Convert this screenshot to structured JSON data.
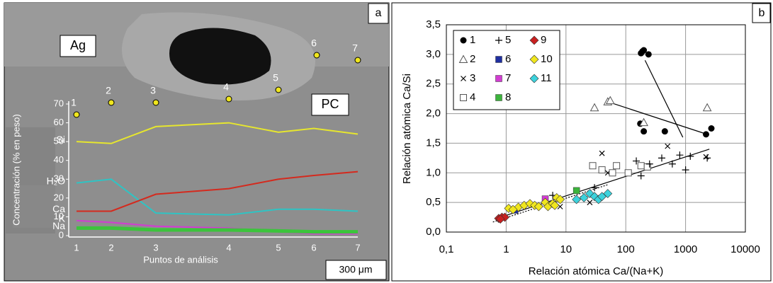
{
  "chart_data": [
    {
      "type": "line",
      "panel": "a",
      "annotations": {
        "phases": [
          "Ag",
          "PC"
        ],
        "scale_bar": "300 μm"
      },
      "xlabel": "Puntos de análisis",
      "ylabel": "Concentración (% en peso)",
      "categories": [
        "1",
        "2",
        "3",
        "4",
        "5",
        "6",
        "7"
      ],
      "ylim": [
        0,
        70
      ],
      "yticks": [
        0,
        10,
        20,
        30,
        40,
        50,
        60,
        70
      ],
      "series": [
        {
          "name": "Si",
          "color": "#e6e62e",
          "values": [
            50,
            49,
            58,
            60,
            55,
            57,
            54
          ]
        },
        {
          "name": "H₂O",
          "color": "#2ec4c4",
          "values": [
            28,
            30,
            12,
            11,
            14,
            14,
            13
          ]
        },
        {
          "name": "Ca",
          "color": "#d42a1e",
          "values": [
            13,
            13,
            22,
            25,
            30,
            32,
            34
          ]
        },
        {
          "name": "K",
          "color": "#d23cd2",
          "values": [
            8,
            7,
            5,
            4,
            2,
            1,
            1
          ]
        },
        {
          "name": "Na",
          "color": "#3cc43c",
          "values": [
            4,
            4,
            3,
            3,
            2.5,
            2,
            2
          ]
        }
      ]
    },
    {
      "type": "scatter",
      "panel": "b",
      "xlabel": "Relación atómica Ca/(Na+K)",
      "ylabel": "Relación atómica Ca/Si",
      "log_x": true,
      "grid": true,
      "legend": "upper left",
      "xlim": [
        0.1,
        10000
      ],
      "xticks": [
        {
          "value": 0.1,
          "label": "0,1"
        },
        1,
        10,
        100,
        1000,
        10000
      ],
      "ylim": [
        0,
        3.5
      ],
      "yticks": [
        {
          "value": 0,
          "label": "0,0"
        },
        {
          "value": 0.5,
          "label": "0,5"
        },
        {
          "value": 1,
          "label": "1,0"
        },
        {
          "value": 1.5,
          "label": "1,5"
        },
        {
          "value": 2,
          "label": "2,0"
        },
        {
          "value": 2.5,
          "label": "2,5"
        },
        {
          "value": 3,
          "label": "3,0"
        },
        {
          "value": 3.5,
          "label": "3,5"
        }
      ],
      "series": [
        {
          "name": "1",
          "marker": "circle",
          "color": "#000000",
          "x": [
            180,
            190,
            200,
            240,
            175,
            200,
            450,
            2200,
            2700
          ],
          "y": [
            3.02,
            3.05,
            3.07,
            3.0,
            1.83,
            1.7,
            1.7,
            1.65,
            1.75
          ]
        },
        {
          "name": "2",
          "marker": "triangle",
          "color": "#555555",
          "x": [
            30,
            50,
            55,
            200,
            2300
          ],
          "y": [
            2.1,
            2.2,
            2.22,
            1.85,
            2.1
          ]
        },
        {
          "name": "3",
          "marker": "cross",
          "color": "#000000",
          "x": [
            40,
            50,
            500,
            2200,
            8,
            25,
            6
          ],
          "y": [
            1.33,
            1.0,
            1.45,
            1.27,
            0.43,
            0.5,
            0.48
          ]
        },
        {
          "name": "4",
          "marker": "open-square",
          "color": "#555555",
          "x": [
            28,
            40,
            60,
            70,
            110,
            180,
            230
          ],
          "y": [
            1.12,
            1.05,
            1.0,
            1.12,
            1.0,
            1.12,
            1.1
          ]
        },
        {
          "name": "5",
          "marker": "plus",
          "color": "#000000",
          "x": [
            150,
            180,
            250,
            400,
            600,
            800,
            1000,
            1200,
            2300,
            15,
            20,
            6,
            30
          ],
          "y": [
            1.2,
            0.95,
            1.15,
            1.25,
            1.15,
            1.3,
            1.05,
            1.28,
            1.25,
            0.55,
            0.6,
            0.62,
            0.75
          ]
        },
        {
          "name": "6",
          "marker": "square",
          "color": "#1f2fa0",
          "x": [
            1.4
          ],
          "y": [
            0.37
          ]
        },
        {
          "name": "7",
          "marker": "square",
          "color": "#d23cd2",
          "x": [
            4.5
          ],
          "y": [
            0.56
          ]
        },
        {
          "name": "8",
          "marker": "square",
          "color": "#3cb43c",
          "x": [
            15
          ],
          "y": [
            0.7
          ]
        },
        {
          "name": "9",
          "marker": "diamond",
          "color": "#c82020",
          "x": [
            0.75,
            0.85,
            0.95,
            0.8
          ],
          "y": [
            0.23,
            0.25,
            0.25,
            0.22
          ]
        },
        {
          "name": "10",
          "marker": "diamond",
          "color": "#f0e61e",
          "x": [
            1.1,
            1.6,
            2,
            2.5,
            3,
            3.5,
            4.5,
            5,
            6,
            7,
            8,
            6.5,
            1.3
          ],
          "y": [
            0.4,
            0.42,
            0.45,
            0.48,
            0.45,
            0.43,
            0.5,
            0.43,
            0.48,
            0.58,
            0.55,
            0.45,
            0.38
          ]
        },
        {
          "name": "11",
          "marker": "diamond",
          "color": "#3cd2dc",
          "x": [
            15,
            20,
            25,
            30,
            35,
            50,
            40
          ],
          "y": [
            0.55,
            0.58,
            0.65,
            0.6,
            0.55,
            0.65,
            0.6
          ]
        }
      ],
      "lines": [
        {
          "x": [
            210,
            900
          ],
          "y": [
            2.9,
            1.6
          ],
          "dash": false
        },
        {
          "x": [
            50,
            2300
          ],
          "y": [
            2.2,
            1.65
          ],
          "dash": false
        },
        {
          "x": [
            0.8,
            2500
          ],
          "y": [
            0.25,
            1.4
          ],
          "dash": false
        },
        {
          "x": [
            0.6,
            50
          ],
          "y": [
            0.17,
            0.8
          ],
          "dash": true
        }
      ]
    }
  ]
}
